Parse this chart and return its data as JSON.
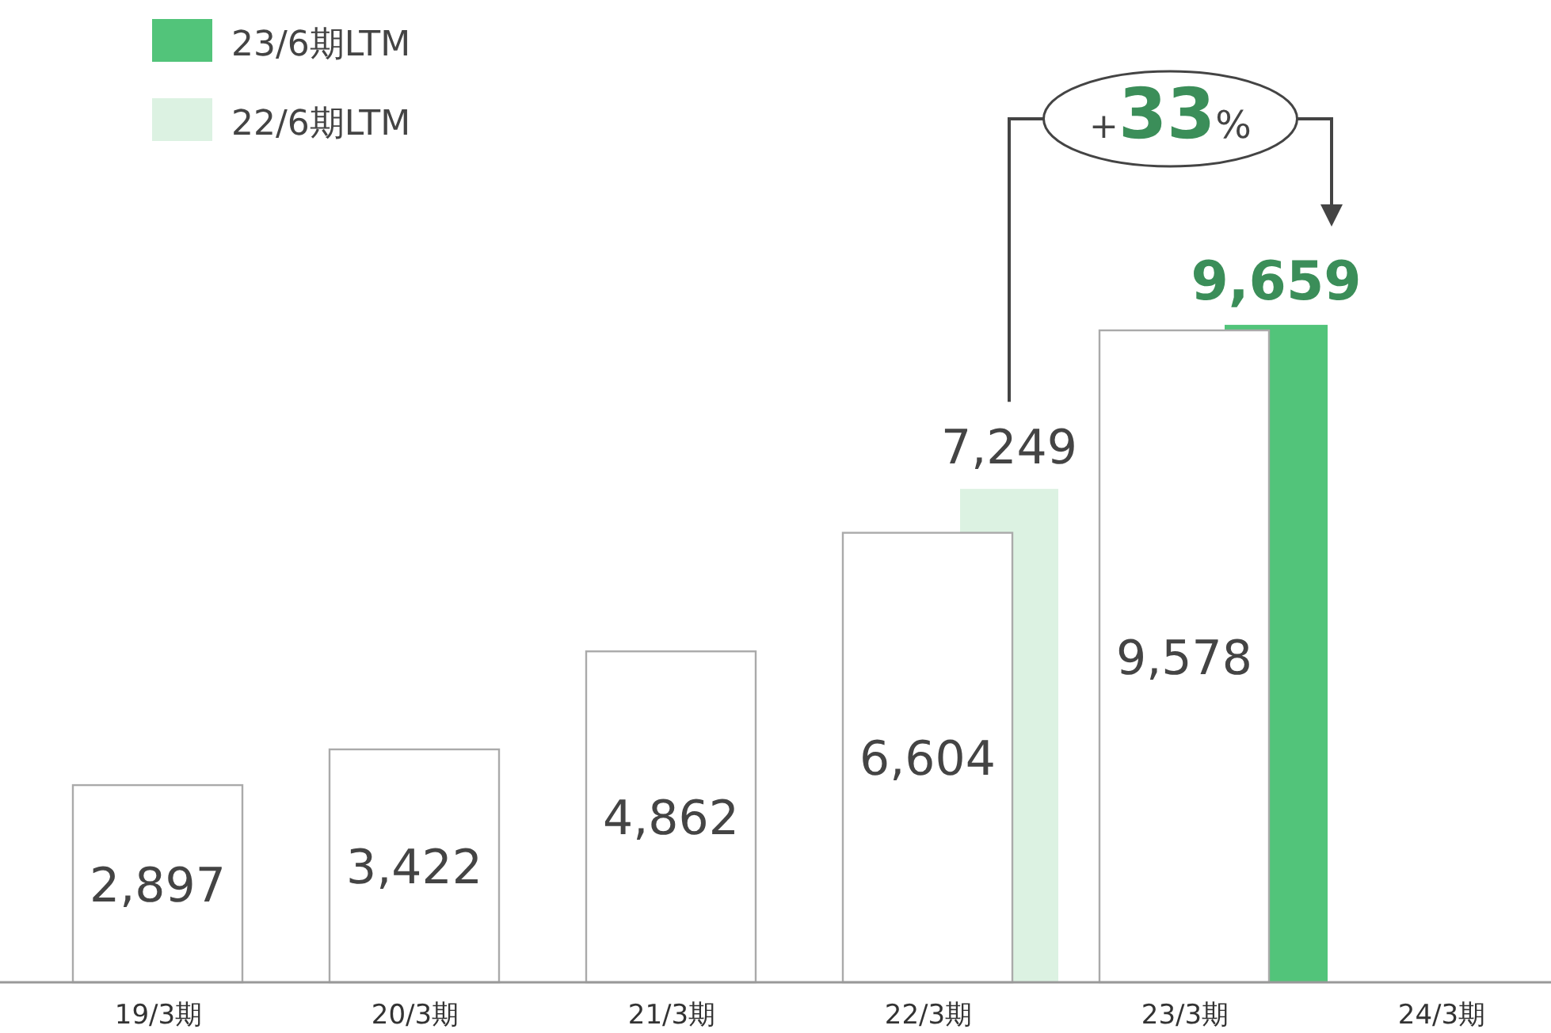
{
  "chart_data": {
    "type": "bar",
    "categories": [
      "19/3期",
      "20/3期",
      "21/3期",
      "22/3期",
      "23/3期",
      "24/3期"
    ],
    "series": [
      {
        "name": "23/6期LTM",
        "color": "#52c47a",
        "values": [
          null,
          null,
          null,
          null,
          9659,
          null
        ],
        "value_labels": [
          null,
          null,
          null,
          null,
          "9,659",
          null
        ]
      },
      {
        "name": "22/6期LTM",
        "color": "#dcf2e2",
        "values": [
          null,
          null,
          null,
          7249,
          null,
          null
        ],
        "value_labels": [
          null,
          null,
          null,
          "7,249",
          null,
          null
        ]
      },
      {
        "color": "#ffffff",
        "values": [
          2897,
          3422,
          4862,
          6604,
          9578,
          null
        ],
        "value_labels": [
          "2,897",
          "3,422",
          "4,862",
          "6,604",
          "9,578",
          null
        ]
      }
    ],
    "legend": "top left",
    "annotations": [
      "+33%"
    ]
  }
}
